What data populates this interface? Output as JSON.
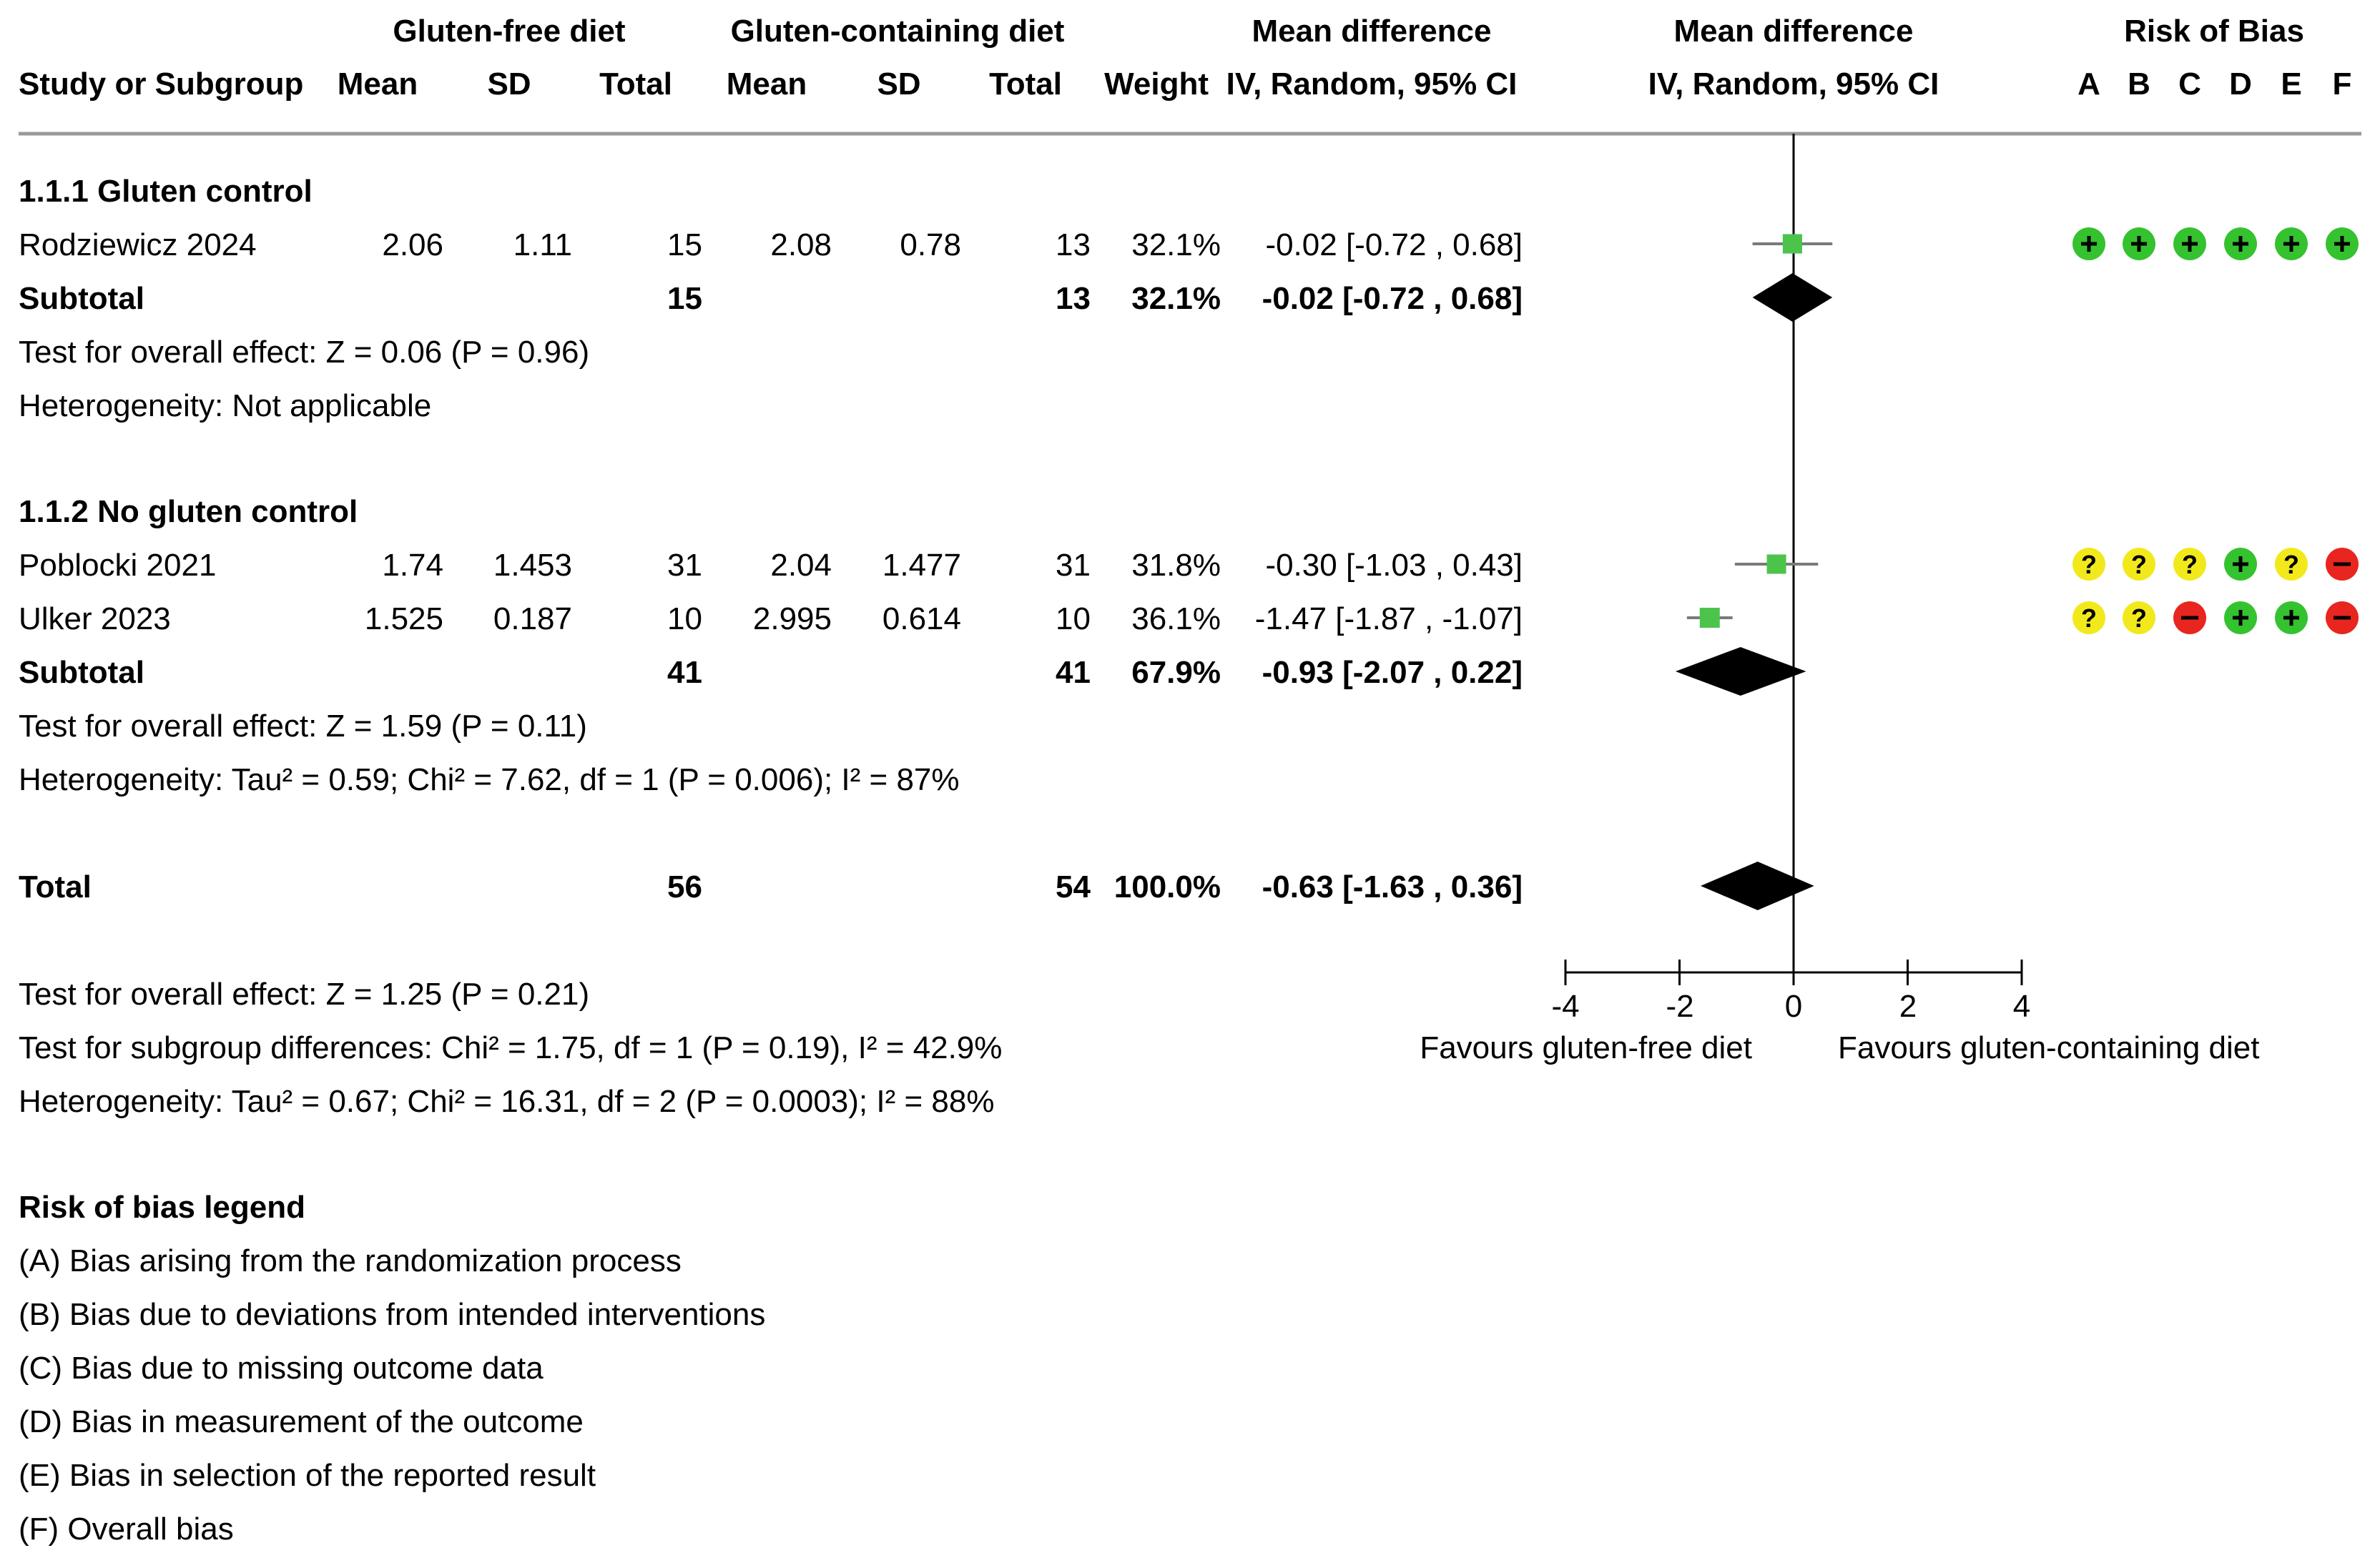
{
  "header": {
    "group1": "Gluten-free diet",
    "group2": "Gluten-containing diet",
    "md_table": "Mean difference",
    "md_plot": "Mean difference",
    "rob": "Risk of Bias",
    "col_study": "Study or Subgroup",
    "col_mean1": "Mean",
    "col_sd1": "SD",
    "col_total1": "Total",
    "col_mean2": "Mean",
    "col_sd2": "SD",
    "col_total2": "Total",
    "col_weight": "Weight",
    "col_ci_table": "IV, Random, 95% CI",
    "col_ci_plot": "IV, Random, 95% CI",
    "rob_cols": [
      "A",
      "B",
      "C",
      "D",
      "E",
      "F"
    ]
  },
  "groups": [
    {
      "title": "1.1.1 Gluten control",
      "subtotal": {
        "label": "Subtotal",
        "total1": "15",
        "total2": "13",
        "weight": "32.1%",
        "ci": "-0.02 [-0.72 , 0.68]"
      },
      "effect": "Test for overall effect: Z = 0.06 (P = 0.96)",
      "heterogeneity": "Heterogeneity: Not applicable"
    },
    {
      "title": "1.1.2 No gluten control",
      "subtotal": {
        "label": "Subtotal",
        "total1": "41",
        "total2": "41",
        "weight": "67.9%",
        "ci": "-0.93 [-2.07 , 0.22]"
      },
      "effect": "Test for overall effect: Z = 1.59 (P = 0.11)",
      "heterogeneity": "Heterogeneity: Tau² = 0.59; Chi² = 7.62, df = 1 (P = 0.006); I² = 87%"
    }
  ],
  "studies": [
    {
      "name": "Rodziewicz 2024",
      "mean1": "2.06",
      "sd1": "1.11",
      "total1": "15",
      "mean2": "2.08",
      "sd2": "0.78",
      "total2": "13",
      "weight": "32.1%",
      "ci": "-0.02 [-0.72 , 0.68]",
      "rob": [
        "+",
        "+",
        "+",
        "+",
        "+",
        "+"
      ]
    },
    {
      "name": "Poblocki 2021",
      "mean1": "1.74",
      "sd1": "1.453",
      "total1": "31",
      "mean2": "2.04",
      "sd2": "1.477",
      "total2": "31",
      "weight": "31.8%",
      "ci": "-0.30 [-1.03 , 0.43]",
      "rob": [
        "?",
        "?",
        "?",
        "+",
        "?",
        "-"
      ]
    },
    {
      "name": "Ulker 2023",
      "mean1": "1.525",
      "sd1": "0.187",
      "total1": "10",
      "mean2": "2.995",
      "sd2": "0.614",
      "total2": "10",
      "weight": "36.1%",
      "ci": "-1.47 [-1.87 , -1.07]",
      "rob": [
        "?",
        "?",
        "-",
        "+",
        "+",
        "-"
      ]
    }
  ],
  "total": {
    "label": "Total",
    "total1": "56",
    "total2": "54",
    "weight": "100.0%",
    "ci": "-0.63 [-1.63 , 0.36]",
    "effect": "Test for overall effect: Z = 1.25 (P = 0.21)",
    "subgroup": "Test for subgroup differences: Chi² = 1.75, df = 1 (P = 0.19), I² = 42.9%",
    "heterogeneity": "Heterogeneity: Tau² = 0.67; Chi² = 16.31, df = 2 (P = 0.0003); I² = 88%"
  },
  "axis": {
    "ticks": [
      "-4",
      "-2",
      "0",
      "2",
      "4"
    ],
    "favours_left": "Favours gluten-free diet",
    "favours_right": "Favours gluten-containing diet"
  },
  "legend": {
    "title": "Risk of bias legend",
    "items": [
      "(A) Bias arising from the randomization process",
      "(B) Bias due to deviations from intended interventions",
      "(C) Bias due to missing outcome data",
      "(D) Bias in measurement of the outcome",
      "(E) Bias in selection of the reported result",
      "(F) Overall bias"
    ]
  },
  "colors": {
    "low_risk": "#35c22f",
    "some_concerns": "#f2e91c",
    "high_risk": "#e8251f",
    "point": "#4cc44c",
    "whisker": "#7a7a7a",
    "diamond": "#000000",
    "rule": "#999999"
  },
  "chart_data": {
    "type": "forest",
    "title": "Mean difference IV, Random, 95% CI",
    "xlabel": "",
    "ylabel": "",
    "xlim": [
      -4,
      4
    ],
    "xticks": [
      -4,
      -2,
      0,
      2,
      4
    ],
    "null_line": 0,
    "labels": [
      "Favours gluten-free diet",
      "Favours gluten-containing diet"
    ],
    "studies": [
      {
        "name": "Rodziewicz 2024",
        "estimate": -0.02,
        "lower": -0.72,
        "upper": 0.68,
        "weight": 32.1
      },
      {
        "name": "Poblocki 2021",
        "estimate": -0.3,
        "lower": -1.03,
        "upper": 0.43,
        "weight": 31.8
      },
      {
        "name": "Ulker 2023",
        "estimate": -1.47,
        "lower": -1.87,
        "upper": -1.07,
        "weight": 36.1
      }
    ],
    "subtotals": [
      {
        "name": "1.1.1 Gluten control",
        "estimate": -0.02,
        "lower": -0.72,
        "upper": 0.68
      },
      {
        "name": "1.1.2 No gluten control",
        "estimate": -0.93,
        "lower": -2.07,
        "upper": 0.22
      }
    ],
    "overall": {
      "name": "Total",
      "estimate": -0.63,
      "lower": -1.63,
      "upper": 0.36
    }
  }
}
